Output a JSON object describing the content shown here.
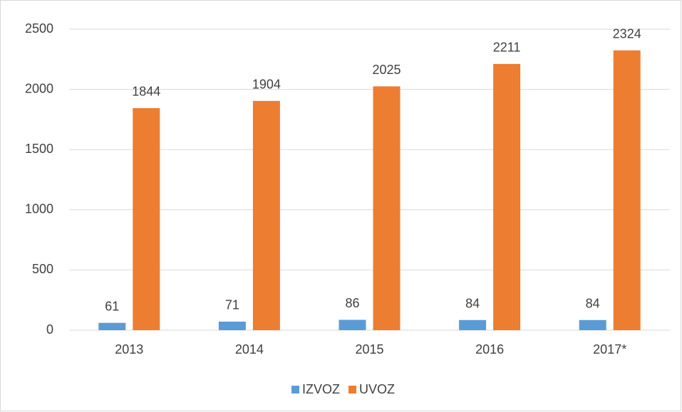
{
  "chart_data": {
    "type": "bar",
    "categories": [
      "2013",
      "2014",
      "2015",
      "2016",
      "2017*"
    ],
    "series": [
      {
        "name": "IZVOZ",
        "color": "#5b9bd5",
        "values": [
          61,
          71,
          86,
          84,
          84
        ]
      },
      {
        "name": "UVOZ",
        "color": "#ed7d31",
        "values": [
          1844,
          1904,
          2025,
          2211,
          2324
        ]
      }
    ],
    "ylim": [
      0,
      2500
    ],
    "yticks": [
      0,
      500,
      1000,
      1500,
      2000,
      2500
    ],
    "grid": true,
    "legend": "bottom"
  }
}
